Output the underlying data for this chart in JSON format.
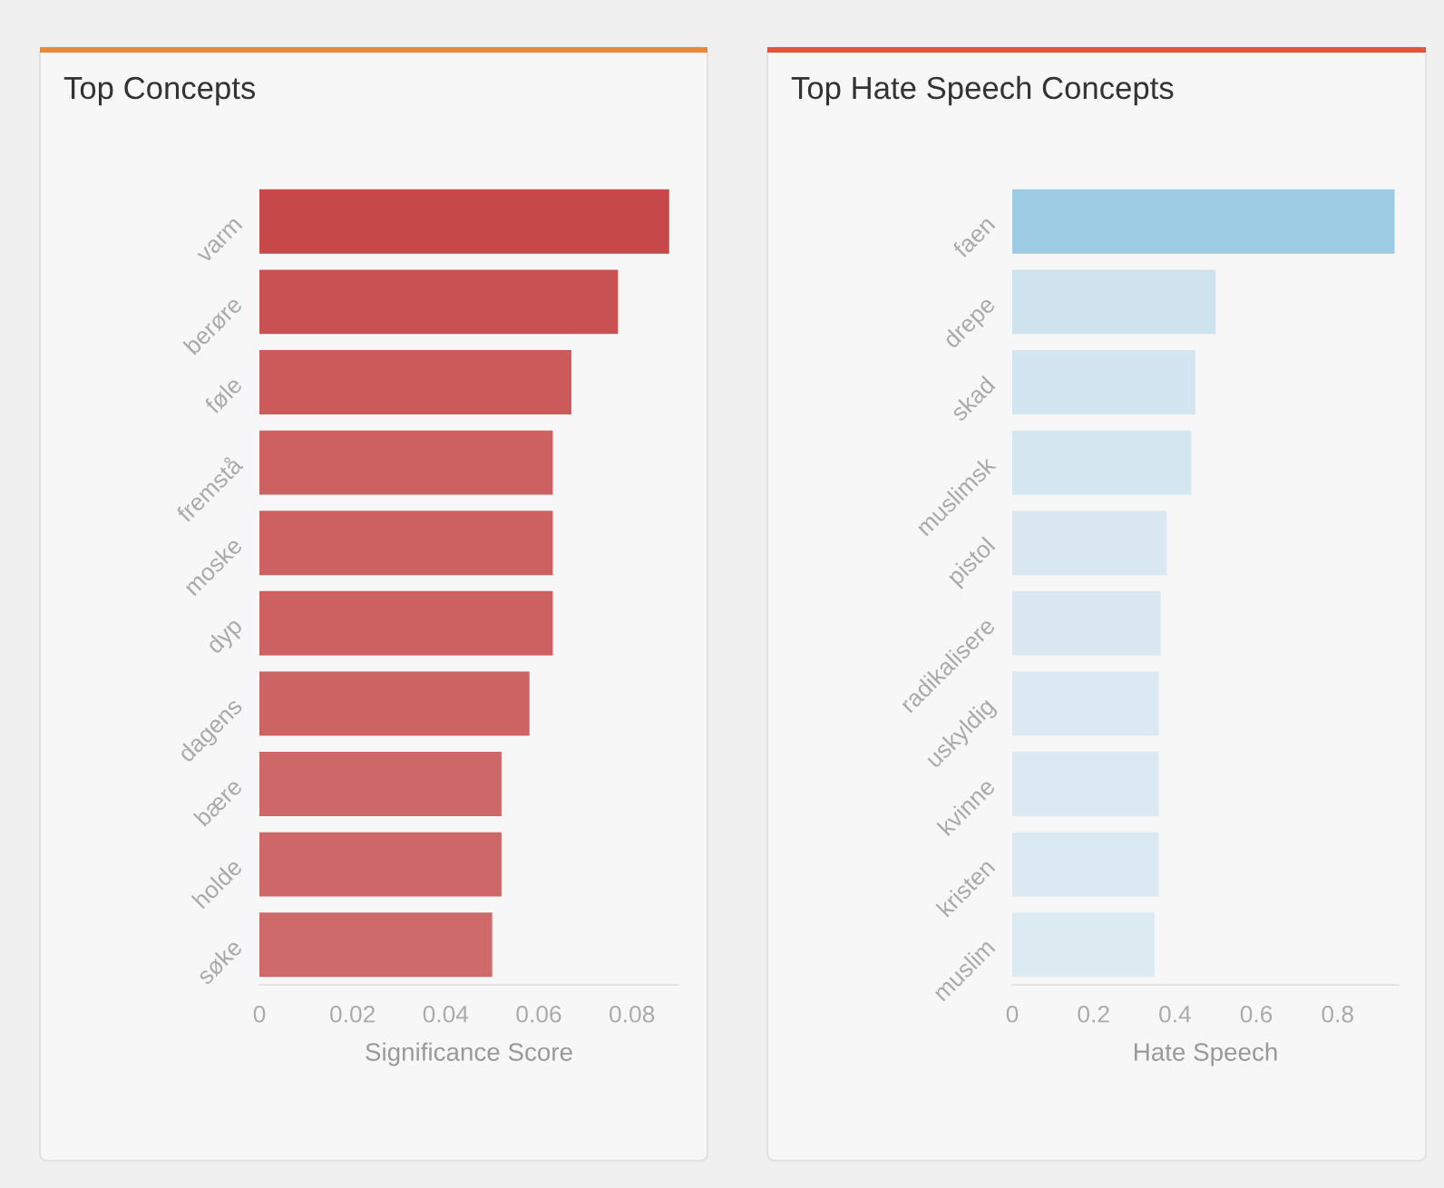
{
  "chart_data": [
    {
      "type": "bar",
      "orientation": "horizontal",
      "title": "Top Concepts",
      "xlabel": "Significance Score",
      "categories": [
        "varm",
        "berøre",
        "føle",
        "fremstå",
        "moske",
        "dyp",
        "dagens",
        "bære",
        "holde",
        "søke"
      ],
      "values": [
        0.088,
        0.077,
        0.067,
        0.063,
        0.063,
        0.063,
        0.058,
        0.052,
        0.052,
        0.05
      ],
      "colors": [
        "#c64848",
        "#c95151",
        "#cc5a5a",
        "#cd6060",
        "#cd6060",
        "#cd6060",
        "#cd6464",
        "#ce6868",
        "#ce6868",
        "#ce6a6a"
      ],
      "xlim": [
        0,
        0.09
      ],
      "xticks": [
        0,
        0.02,
        0.04,
        0.06,
        0.08
      ],
      "grid": false
    },
    {
      "type": "bar",
      "orientation": "horizontal",
      "title": "Top Hate Speech Concepts",
      "xlabel": "Hate Speech",
      "categories": [
        "faen",
        "drepe",
        "skad",
        "muslimsk",
        "pistol",
        "radikalisere",
        "uskyldig",
        "kvinne",
        "kristen",
        "muslim"
      ],
      "values": [
        0.94,
        0.5,
        0.45,
        0.44,
        0.38,
        0.365,
        0.36,
        0.36,
        0.36,
        0.35
      ],
      "colors": [
        "#9ccbe3",
        "#cfe3ef",
        "#d3e5f0",
        "#d4e6f0",
        "#d9e8f1",
        "#dae9f1",
        "#dbe9f2",
        "#dbe9f2",
        "#dbe9f2",
        "#dceaf2"
      ],
      "xlim": [
        0,
        0.95
      ],
      "xticks": [
        0,
        0.2,
        0.4,
        0.6,
        0.8
      ],
      "grid": false
    }
  ]
}
